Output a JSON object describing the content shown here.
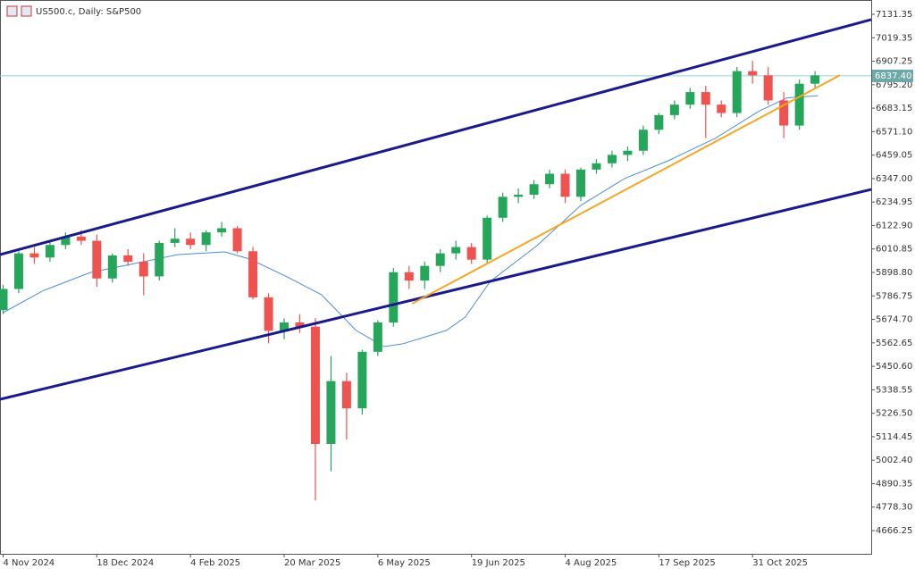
{
  "chart_data": {
    "type": "candlestick",
    "title": "US500.c, Daily: S&P500",
    "x": [
      0,
      5,
      10,
      15,
      20,
      25,
      30,
      35,
      40,
      45,
      50,
      55,
      60,
      65,
      70,
      75,
      80,
      85,
      90,
      95,
      100,
      105,
      110,
      115,
      120,
      125,
      130,
      135,
      140,
      145,
      150,
      155,
      160,
      165,
      170,
      175,
      180,
      185,
      190,
      195,
      200,
      205,
      210,
      215,
      220,
      225,
      230,
      235,
      240,
      245,
      250,
      255,
      260
    ],
    "open": [
      5720,
      5820,
      5990,
      5970,
      6030,
      6070,
      6050,
      5870,
      5980,
      5950,
      5880,
      6040,
      6060,
      6030,
      6090,
      6110,
      6000,
      5780,
      5620,
      5660,
      5640,
      5080,
      5380,
      5250,
      5520,
      5660,
      5900,
      5860,
      5930,
      5990,
      6020,
      5960,
      6160,
      6260,
      6270,
      6320,
      6370,
      6260,
      6390,
      6420,
      6460,
      6480,
      6580,
      6650,
      6700,
      6760,
      6700,
      6660,
      6860,
      6840,
      6720,
      6600,
      6800
    ],
    "high": [
      5840,
      6000,
      6020,
      6050,
      6090,
      6100,
      6080,
      5990,
      6010,
      5990,
      6050,
      6110,
      6090,
      6100,
      6140,
      6120,
      6020,
      5800,
      5680,
      5700,
      5680,
      5500,
      5420,
      5530,
      5670,
      5920,
      5930,
      5950,
      6010,
      6050,
      6040,
      6170,
      6280,
      6300,
      6340,
      6390,
      6390,
      6400,
      6440,
      6480,
      6500,
      6600,
      6660,
      6720,
      6780,
      6790,
      6720,
      6880,
      6910,
      6880,
      6760,
      6820,
      6860
    ],
    "low": [
      5700,
      5800,
      5940,
      5950,
      6010,
      6030,
      5830,
      5850,
      5930,
      5790,
      5860,
      6020,
      6010,
      6000,
      6070,
      5990,
      5770,
      5560,
      5580,
      5610,
      4810,
      4950,
      5100,
      5220,
      5500,
      5640,
      5820,
      5820,
      5900,
      5960,
      5940,
      5940,
      6140,
      6230,
      6250,
      6300,
      6230,
      6240,
      6370,
      6400,
      6430,
      6460,
      6560,
      6630,
      6680,
      6540,
      6640,
      6640,
      6800,
      6700,
      6540,
      6580,
      6780
    ],
    "close": [
      5820,
      5990,
      5970,
      6030,
      6070,
      6050,
      5870,
      5980,
      5950,
      5880,
      6040,
      6060,
      6030,
      6090,
      6110,
      6000,
      5780,
      5620,
      5660,
      5640,
      5080,
      5380,
      5250,
      5520,
      5660,
      5900,
      5860,
      5930,
      5990,
      6020,
      5960,
      6160,
      6260,
      6270,
      6320,
      6370,
      6260,
      6390,
      6420,
      6460,
      6480,
      6580,
      6650,
      6700,
      6760,
      6700,
      6660,
      6860,
      6840,
      6720,
      6600,
      6800,
      6840
    ],
    "up_color": "#26a65b",
    "down_color": "#ef5350",
    "moving_average": {
      "color": "#4a90d9",
      "x": [
        0,
        13,
        28,
        42,
        56,
        71,
        79,
        91,
        102,
        113,
        122,
        128,
        142,
        148,
        156,
        171,
        185,
        199,
        213,
        228,
        242,
        251,
        261
      ],
      "values": [
        5707,
        5813,
        5899,
        5941,
        5984,
        5997,
        5963,
        5877,
        5792,
        5622,
        5545,
        5558,
        5622,
        5686,
        5856,
        6027,
        6219,
        6347,
        6432,
        6539,
        6668,
        6732,
        6743
      ]
    },
    "trendlines": [
      {
        "color": "#1a1a8c",
        "x": [
          -1,
          278
        ],
        "values": [
          5984,
          7106
        ]
      },
      {
        "color": "#1a1a8c",
        "x": [
          -1,
          278
        ],
        "values": [
          5293,
          6295
        ]
      },
      {
        "color": "#f5a623",
        "x": [
          131,
          268
        ],
        "values": [
          5750,
          6841
        ]
      }
    ],
    "price_line": {
      "value": 6837.4,
      "label": "6837.40",
      "color": "#8fd0d0"
    },
    "xlim": [
      -1,
      278
    ],
    "xticks": [
      {
        "value": 0,
        "label": "4 Nov 2024"
      },
      {
        "value": 30,
        "label": "18 Dec 2024"
      },
      {
        "value": 60,
        "label": "4 Feb 2025"
      },
      {
        "value": 90,
        "label": "20 Mar 2025"
      },
      {
        "value": 120,
        "label": "6 May 2025"
      },
      {
        "value": 150,
        "label": "19 Jun 2025"
      },
      {
        "value": 180,
        "label": "4 Aug 2025"
      },
      {
        "value": 210,
        "label": "17 Sep 2025"
      },
      {
        "value": 240,
        "label": "31 Oct 2025"
      }
    ],
    "ylim": [
      4555.4,
      7199.6
    ],
    "yticks": [
      7131.35,
      7019.35,
      6907.25,
      {
        "value": 6795.2,
        "label": "6795.20"
      },
      6683.15,
      {
        "value": 6571.1,
        "label": "6571.10"
      },
      6459.05,
      {
        "value": 6347,
        "label": "6347.00"
      },
      6234.95,
      {
        "value": 6122.9,
        "label": "6122.90"
      },
      6010.85,
      {
        "value": 5898.8,
        "label": "5898.80"
      },
      5786.75,
      {
        "value": 5674.7,
        "label": "5674.70"
      },
      5562.65,
      {
        "value": 5450.6,
        "label": "5450.60"
      },
      5338.55,
      {
        "value": 5226.5,
        "label": "5226.50"
      },
      5114.45,
      {
        "value": 5002.4,
        "label": "5002.40"
      },
      4890.35,
      {
        "value": 4778.3,
        "label": "4778.30"
      },
      4666.25
    ]
  }
}
